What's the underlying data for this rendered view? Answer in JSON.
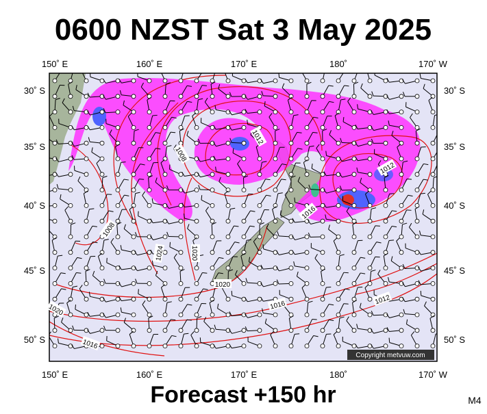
{
  "header": {
    "title": "0600 NZST Sat 3 May 2025"
  },
  "longitude_labels": [
    "150˚ E",
    "160˚ E",
    "170˚ E",
    "180˚",
    "170˚ W"
  ],
  "latitude_labels": [
    "30˚ S",
    "35˚ S",
    "40˚ S",
    "45˚ S",
    "50˚ S"
  ],
  "isobar_labels": [
    "1012",
    "1008",
    "1012",
    "1016",
    "1008",
    "1024",
    "1020",
    "1020",
    "1016",
    "1012",
    "1020",
    "1016"
  ],
  "copyright": "Copyright metvuw.com",
  "footer": {
    "forecast": "Forecast +150 hr",
    "model": "M4"
  }
}
